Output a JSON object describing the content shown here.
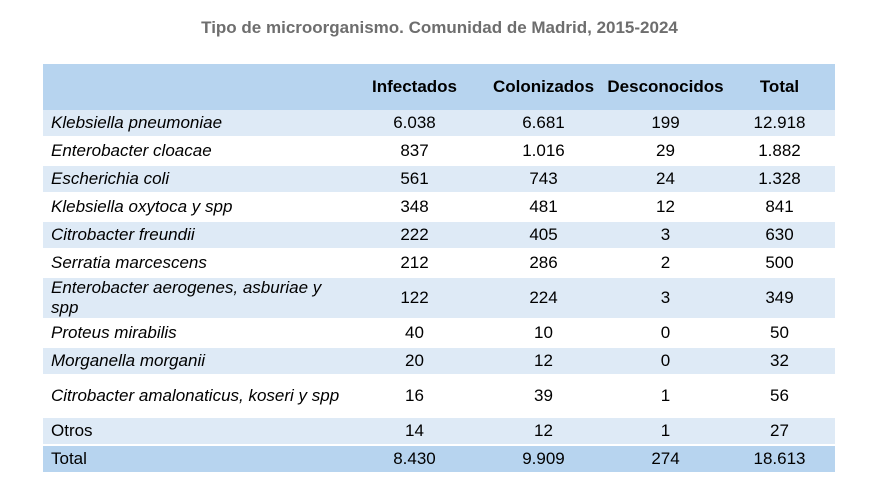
{
  "title": "Tipo de microorganismo. Comunidad de Madrid, 2015-2024",
  "headers": [
    "",
    "Infectados",
    "Colonizados",
    "Desconocidos",
    "Total"
  ],
  "rows": [
    {
      "name": "Klebsiella pneumoniae",
      "infectados": "6.038",
      "colonizados": "6.681",
      "desconocidos": "199",
      "total": "12.918"
    },
    {
      "name": "Enterobacter cloacae",
      "infectados": "837",
      "colonizados": "1.016",
      "desconocidos": "29",
      "total": "1.882"
    },
    {
      "name": "Escherichia coli",
      "infectados": "561",
      "colonizados": "743",
      "desconocidos": "24",
      "total": "1.328"
    },
    {
      "name": "Klebsiella oxytoca y spp",
      "infectados": "348",
      "colonizados": "481",
      "desconocidos": "12",
      "total": "841"
    },
    {
      "name": "Citrobacter freundii",
      "infectados": "222",
      "colonizados": "405",
      "desconocidos": "3",
      "total": "630"
    },
    {
      "name": "Serratia marcescens",
      "infectados": "212",
      "colonizados": "286",
      "desconocidos": "2",
      "total": "500"
    },
    {
      "name": "Enterobacter aerogenes, asburiae y spp",
      "infectados": "122",
      "colonizados": "224",
      "desconocidos": "3",
      "total": "349"
    },
    {
      "name": "Proteus mirabilis",
      "infectados": "40",
      "colonizados": "10",
      "desconocidos": "0",
      "total": "50"
    },
    {
      "name": "Morganella morganii",
      "infectados": "20",
      "colonizados": "12",
      "desconocidos": "0",
      "total": "32"
    },
    {
      "name": "Citrobacter amalonaticus, koseri y spp",
      "infectados": "16",
      "colonizados": "39",
      "desconocidos": "1",
      "total": "56"
    },
    {
      "name": "Otros",
      "infectados": "14",
      "colonizados": "12",
      "desconocidos": "1",
      "total": "27"
    }
  ],
  "total_row": {
    "name": "Total",
    "infectados": "8.430",
    "colonizados": "9.909",
    "desconocidos": "274",
    "total": "18.613"
  }
}
